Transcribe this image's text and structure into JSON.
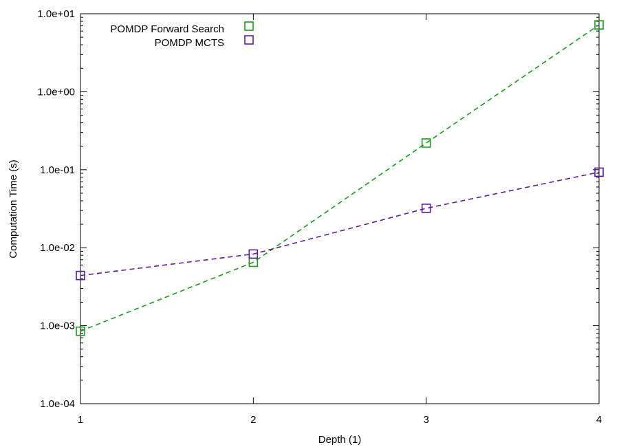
{
  "chart_data": {
    "type": "line",
    "xlabel": "Depth (1)",
    "ylabel": "Computation Time (s)",
    "xlim": [
      1,
      4
    ],
    "ylim": [
      0.0001,
      10
    ],
    "yscale": "log",
    "grid": false,
    "legend_position": "top-left",
    "x_ticks": [
      "1",
      "2",
      "3",
      "4"
    ],
    "y_ticks": [
      "1.0e-04",
      "1.0e-03",
      "1.0e-02",
      "1.0e-01",
      "1.0e+00",
      "1.0e+01"
    ],
    "series": [
      {
        "name": "POMDP Forward Search",
        "color": "#1a9a1a",
        "marker": "open-square",
        "line_style": "dashed",
        "x": [
          1,
          2,
          3,
          4
        ],
        "y": [
          0.00085,
          0.0065,
          0.22,
          7.2
        ]
      },
      {
        "name": "POMDP MCTS",
        "color": "#5a1a9a",
        "marker": "open-square",
        "line_style": "dashed",
        "x": [
          1,
          2,
          3,
          4
        ],
        "y": [
          0.0044,
          0.0083,
          0.032,
          0.093
        ]
      }
    ]
  }
}
